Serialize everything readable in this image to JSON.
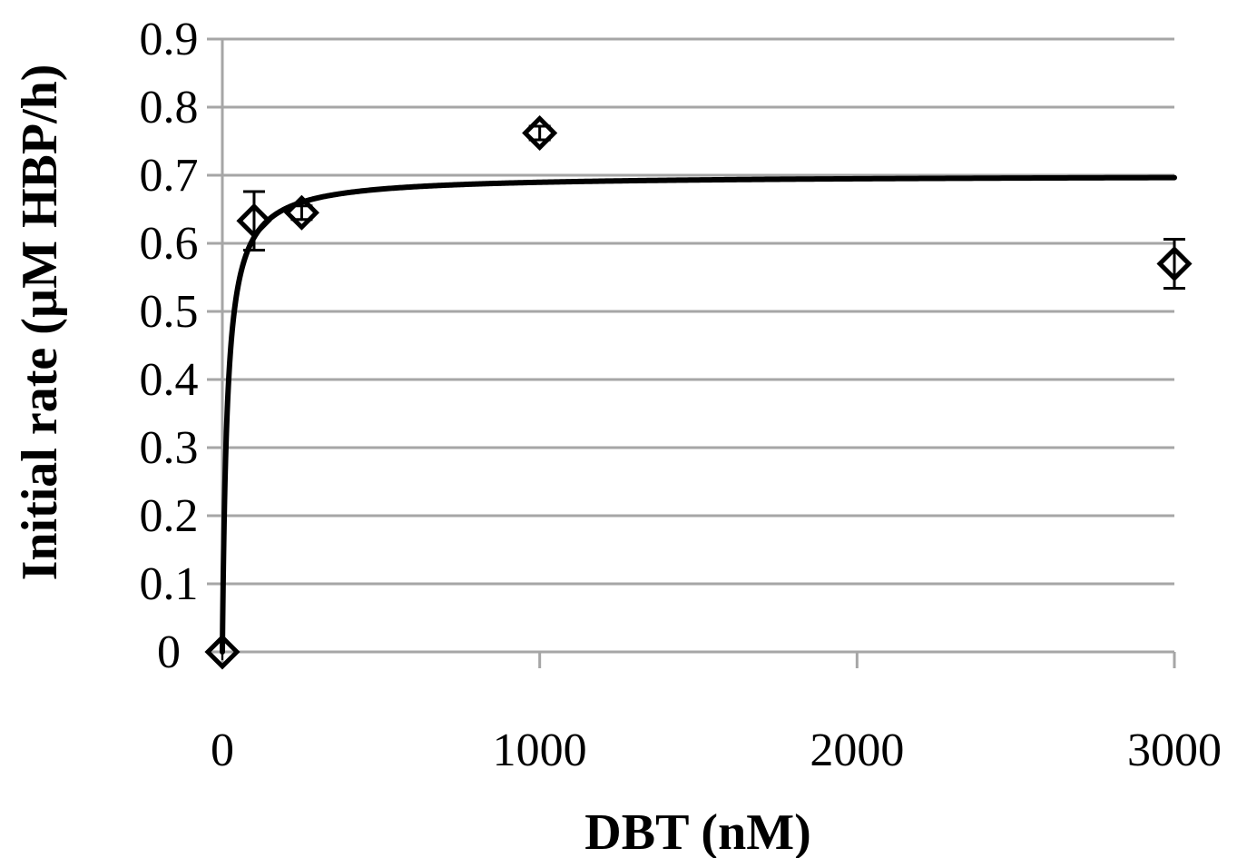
{
  "colors": {
    "gridline": "#a6a6a6",
    "axis": "#a6a6a6",
    "marker": "#000000",
    "fit_line": "#000000",
    "background": "#ffffff"
  },
  "chart_data": {
    "type": "scatter",
    "title": "",
    "xlabel": "DBT (nM)",
    "ylabel": "Initial rate (µM HBP/h)",
    "xlim": [
      0,
      3000
    ],
    "ylim": [
      0,
      0.9
    ],
    "x_ticks": [
      0,
      1000,
      2000,
      3000
    ],
    "x_tick_labels": [
      "0",
      "1000",
      "2000",
      "3000"
    ],
    "y_ticks": [
      0,
      0.1,
      0.2,
      0.3,
      0.4,
      0.5,
      0.6,
      0.7,
      0.8,
      0.9
    ],
    "y_tick_labels": [
      "0",
      "0.1",
      "0.2",
      "0.3",
      "0.4",
      "0.5",
      "0.6",
      "0.7",
      "0.8",
      "0.9"
    ],
    "grid": true,
    "legend": "none",
    "marker": "diamond-open",
    "series": [
      {
        "points": [
          {
            "x": 0,
            "y": 0.0,
            "err": 0
          },
          {
            "x": 100,
            "y": 0.633,
            "err": 0.043
          },
          {
            "x": 250,
            "y": 0.645,
            "err": 0.01
          },
          {
            "x": 1000,
            "y": 0.762,
            "err": 0.01
          },
          {
            "x": 3000,
            "y": 0.57,
            "err": 0.036
          }
        ]
      }
    ],
    "fit": {
      "type": "michaelis-menten",
      "vmax": 0.7,
      "km": 15
    }
  }
}
